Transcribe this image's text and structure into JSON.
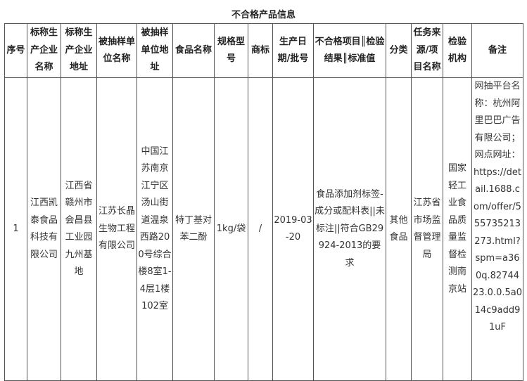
{
  "title": "不合格产品信息",
  "headers": [
    "序号",
    "标称生产企业名称",
    "标称生产企业地址",
    "被抽样单位名称",
    "被抽样单位地址",
    "食品名称",
    "规格型号",
    "商标",
    "生产日期/批号",
    "不合格项目║检验结果║标准值",
    "分类",
    "任务来源/项目名称",
    "检验机构",
    "备注"
  ],
  "rows": [
    [
      "1",
      "江西凯泰食品科技有限公司",
      "江西省赣州市会昌县工业园九州基地",
      "江苏长晶生物工程有限公司",
      "中国江苏南京江宁区汤山街道温泉西路200号综合楼8室1-4层1楼102室",
      "特丁基对苯二酚",
      "1kg/袋",
      "/",
      "2019-03-20",
      "食品添加剂标签-成分或配料表||未标注||符合GB29924-2013的要求",
      "其他食品",
      "江苏省市场监督管理局",
      "国家轻工业食品质量监督检测南京站",
      "网抽平台名称：杭州阿里巴巴广告有限公司；网点网址：https://detail.1688.com/offer/555735213273.html?spm=a360q.8274423.0.0.5a014c9add91uF"
    ]
  ]
}
